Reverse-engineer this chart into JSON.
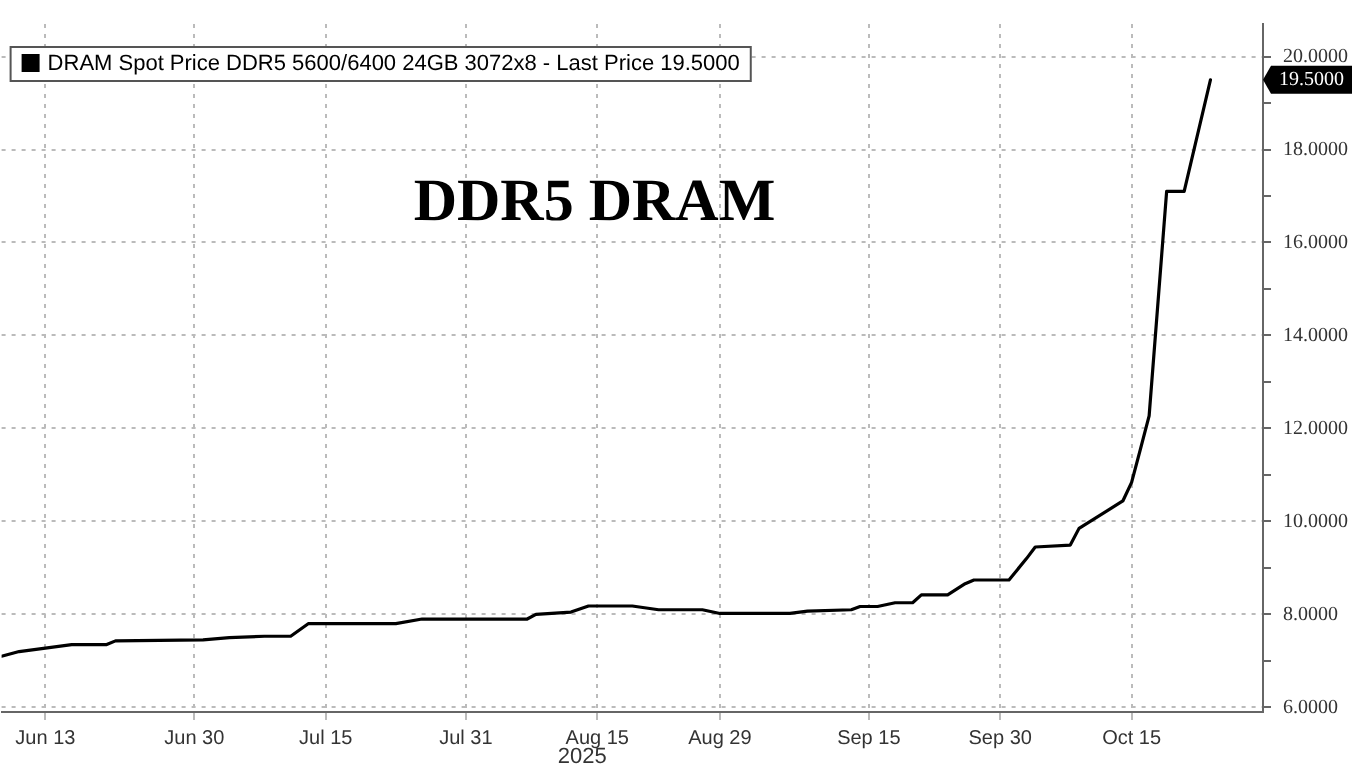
{
  "chart_data": {
    "type": "line",
    "title": "DDR5 DRAM",
    "xlabel": "2025",
    "x": [
      "2025-06-08",
      "2025-06-10",
      "2025-06-16",
      "2025-06-20",
      "2025-06-21",
      "2025-07-01",
      "2025-07-04",
      "2025-07-08",
      "2025-07-11",
      "2025-07-13",
      "2025-07-23",
      "2025-07-26",
      "2025-08-07",
      "2025-08-08",
      "2025-08-12",
      "2025-08-14",
      "2025-08-19",
      "2025-08-22",
      "2025-08-27",
      "2025-08-29",
      "2025-09-06",
      "2025-09-08",
      "2025-09-13",
      "2025-09-14",
      "2025-09-16",
      "2025-09-18",
      "2025-09-20",
      "2025-09-21",
      "2025-09-24",
      "2025-09-26",
      "2025-09-27",
      "2025-10-01",
      "2025-10-03",
      "2025-10-04",
      "2025-10-08",
      "2025-10-09",
      "2025-10-14",
      "2025-10-15",
      "2025-10-16",
      "2025-10-17",
      "2025-10-19",
      "2025-10-21",
      "2025-10-24"
    ],
    "series": [
      {
        "name": "DRAM Spot Price DDR5 5600/6400 24GB 3072x8 - Last Price 19.5000",
        "color": "#000000",
        "values": [
          7.1,
          7.2,
          7.35,
          7.35,
          7.43,
          7.45,
          7.5,
          7.53,
          7.53,
          7.8,
          7.8,
          7.9,
          7.9,
          8.0,
          8.05,
          8.18,
          8.18,
          8.1,
          8.1,
          8.02,
          8.02,
          8.07,
          8.1,
          8.17,
          8.17,
          8.25,
          8.25,
          8.42,
          8.42,
          8.66,
          8.74,
          8.74,
          9.2,
          9.45,
          9.49,
          9.85,
          10.44,
          10.84,
          11.55,
          12.27,
          17.1,
          17.1,
          19.5
        ]
      }
    ],
    "xlim": [
      "2025-06-08",
      "2025-10-30"
    ],
    "xticks": [
      {
        "value": "2025-06-13",
        "label": "Jun 13"
      },
      {
        "value": "2025-06-30",
        "label": "Jun 30"
      },
      {
        "value": "2025-07-15",
        "label": "Jul 15"
      },
      {
        "value": "2025-07-31",
        "label": "Jul 31"
      },
      {
        "value": "2025-08-15",
        "label": "Aug 15"
      },
      {
        "value": "2025-08-29",
        "label": "Aug 29"
      },
      {
        "value": "2025-09-15",
        "label": "Sep 15"
      },
      {
        "value": "2025-09-30",
        "label": "Sep 30"
      },
      {
        "value": "2025-10-15",
        "label": "Oct 15"
      }
    ],
    "ylim": [
      5.9,
      20.7
    ],
    "yticks": [
      {
        "value": 6,
        "label": "6.0000"
      },
      {
        "value": 7,
        "label": null
      },
      {
        "value": 8,
        "label": "8.0000"
      },
      {
        "value": 9,
        "label": null
      },
      {
        "value": 10,
        "label": "10.0000"
      },
      {
        "value": 11,
        "label": null
      },
      {
        "value": 12,
        "label": "12.0000"
      },
      {
        "value": 13,
        "label": null
      },
      {
        "value": 14,
        "label": "14.0000"
      },
      {
        "value": 15,
        "label": null
      },
      {
        "value": 16,
        "label": "16.0000"
      },
      {
        "value": 17,
        "label": null
      },
      {
        "value": 18,
        "label": "18.0000"
      },
      {
        "value": 19,
        "label": null
      },
      {
        "value": 20,
        "label": "20.0000"
      }
    ],
    "annotations": [
      "19.5000"
    ],
    "grid": true,
    "legend": "top left",
    "marker": "none",
    "line_style": "solid"
  }
}
